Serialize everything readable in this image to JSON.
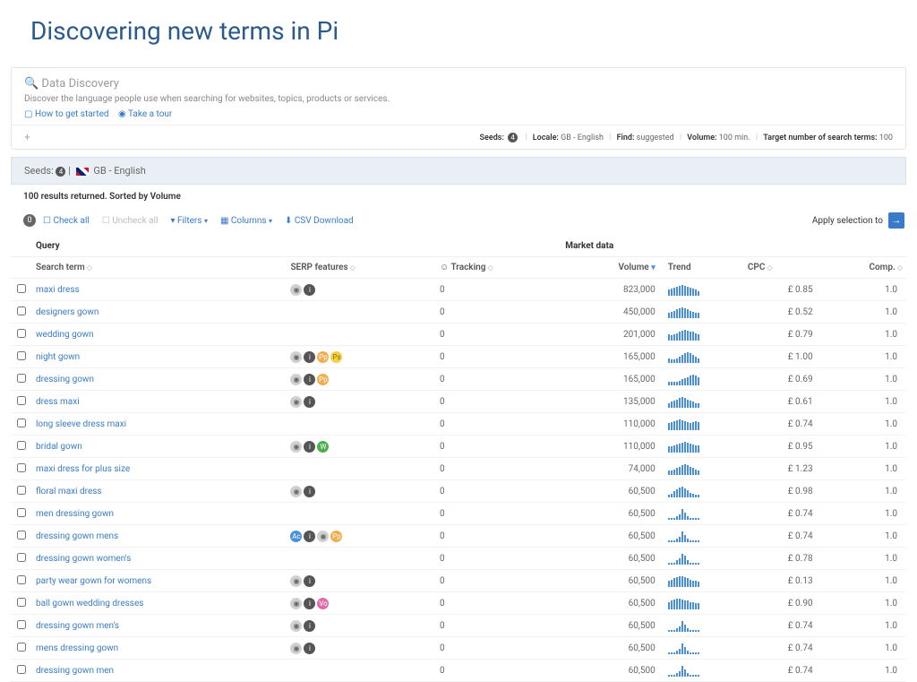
{
  "title": "Discovering new terms in Pi",
  "discovery": {
    "heading": "Data Discovery",
    "sub": "Discover the language people use when searching for websites, topics, products or services.",
    "link_started": "How to get started",
    "link_tour": "Take a tour"
  },
  "seedsBar": {
    "seeds_label": "Seeds:",
    "seeds_count": "4",
    "locale_label": "Locale:",
    "locale": "GB - English",
    "find_label": "Find:",
    "find": "suggested",
    "volume_label": "Volume:",
    "volume": "100 min.",
    "target_label": "Target number of search terms:",
    "target": "100"
  },
  "seedsHeader": {
    "label": "Seeds:",
    "count": "4",
    "locale": "GB - English"
  },
  "resultsInfo": "100 results returned. Sorted by Volume",
  "toolbar": {
    "count": "0",
    "check_all": "Check all",
    "uncheck_all": "Uncheck all",
    "filters": "Filters",
    "columns": "Columns",
    "csv": "CSV Download",
    "apply": "Apply selection to"
  },
  "columns": {
    "group_query": "Query",
    "group_market": "Market data",
    "search_term": "Search term",
    "serp": "SERP features",
    "tracking": "Tracking",
    "volume": "Volume",
    "trend": "Trend",
    "cpc": "CPC",
    "comp": "Comp."
  },
  "rows": [
    {
      "term": "maxi dress",
      "serp": [
        "gray1",
        "dark"
      ],
      "tracking": "0",
      "volume": "823,000",
      "trend": [
        6,
        7,
        8,
        9,
        10,
        11,
        10,
        9,
        8,
        7,
        6,
        5
      ],
      "cpc": "£ 0.85",
      "comp": "1.0"
    },
    {
      "term": "designers gown",
      "serp": [],
      "tracking": "0",
      "volume": "450,000",
      "trend": [
        5,
        6,
        7,
        8,
        9,
        10,
        9,
        8,
        7,
        6,
        5,
        5
      ],
      "cpc": "£ 0.52",
      "comp": "1.0"
    },
    {
      "term": "wedding gown",
      "serp": [],
      "tracking": "0",
      "volume": "201,000",
      "trend": [
        6,
        5,
        6,
        7,
        8,
        9,
        10,
        9,
        8,
        8,
        7,
        6
      ],
      "cpc": "£ 0.79",
      "comp": "1.0"
    },
    {
      "term": "night gown",
      "serp": [
        "gray1",
        "dark",
        "orange",
        "yellow"
      ],
      "tracking": "0",
      "volume": "165,000",
      "trend": [
        5,
        4,
        4,
        5,
        6,
        8,
        10,
        11,
        10,
        8,
        6,
        5
      ],
      "cpc": "£ 1.00",
      "comp": "1.0"
    },
    {
      "term": "dressing gown",
      "serp": [
        "gray1",
        "dark",
        "orange"
      ],
      "tracking": "0",
      "volume": "165,000",
      "trend": [
        4,
        4,
        4,
        4,
        5,
        6,
        7,
        8,
        10,
        11,
        10,
        8
      ],
      "cpc": "£ 0.69",
      "comp": "1.0"
    },
    {
      "term": "dress maxi",
      "serp": [
        "gray1",
        "dark"
      ],
      "tracking": "0",
      "volume": "135,000",
      "trend": [
        4,
        5,
        6,
        7,
        8,
        9,
        8,
        7,
        6,
        5,
        4,
        4
      ],
      "cpc": "£ 0.61",
      "comp": "1.0"
    },
    {
      "term": "long sleeve dress maxi",
      "serp": [],
      "tracking": "0",
      "volume": "110,000",
      "trend": [
        7,
        8,
        9,
        10,
        11,
        10,
        9,
        8,
        7,
        8,
        9,
        8
      ],
      "cpc": "£ 0.74",
      "comp": "1.0"
    },
    {
      "term": "bridal gown",
      "serp": [
        "gray1",
        "dark",
        "green"
      ],
      "tracking": "0",
      "volume": "110,000",
      "trend": [
        6,
        6,
        7,
        8,
        9,
        10,
        11,
        10,
        9,
        8,
        7,
        7
      ],
      "cpc": "£ 0.95",
      "comp": "1.0"
    },
    {
      "term": "maxi dress for plus size",
      "serp": [],
      "tracking": "0",
      "volume": "74,000",
      "trend": [
        3,
        3,
        4,
        5,
        6,
        7,
        8,
        7,
        6,
        5,
        4,
        3
      ],
      "cpc": "£ 1.23",
      "comp": "1.0"
    },
    {
      "term": "floral maxi dress",
      "serp": [
        "gray1",
        "dark"
      ],
      "tracking": "0",
      "volume": "60,500",
      "trend": [
        3,
        4,
        6,
        8,
        10,
        11,
        9,
        7,
        5,
        4,
        3,
        3
      ],
      "cpc": "£ 0.98",
      "comp": "1.0"
    },
    {
      "term": "men dressing gown",
      "serp": [],
      "tracking": "0",
      "volume": "60,500",
      "trend": [
        1,
        1,
        1,
        2,
        3,
        6,
        4,
        2,
        1,
        1,
        1,
        1
      ],
      "cpc": "£ 0.74",
      "comp": "1.0"
    },
    {
      "term": "dressing gown mens",
      "serp": [
        "blue",
        "dark",
        "gray1",
        "orange"
      ],
      "tracking": "0",
      "volume": "60,500",
      "trend": [
        1,
        1,
        1,
        2,
        3,
        6,
        4,
        2,
        1,
        1,
        1,
        1
      ],
      "cpc": "£ 0.74",
      "comp": "1.0"
    },
    {
      "term": "dressing gown women's",
      "serp": [],
      "tracking": "0",
      "volume": "60,500",
      "trend": [
        1,
        1,
        1,
        2,
        3,
        5,
        4,
        2,
        1,
        1,
        1,
        1
      ],
      "cpc": "£ 0.78",
      "comp": "1.0"
    },
    {
      "term": "party wear gown for womens",
      "serp": [
        "gray1",
        "dark"
      ],
      "tracking": "0",
      "volume": "60,500",
      "trend": [
        6,
        7,
        8,
        9,
        10,
        10,
        9,
        8,
        7,
        6,
        6,
        5
      ],
      "cpc": "£ 0.13",
      "comp": "1.0"
    },
    {
      "term": "ball gown wedding dresses",
      "serp": [
        "gray1",
        "dark",
        "pink"
      ],
      "tracking": "0",
      "volume": "60,500",
      "trend": [
        7,
        8,
        9,
        10,
        10,
        9,
        8,
        8,
        7,
        7,
        6,
        6
      ],
      "cpc": "£ 0.90",
      "comp": "1.0"
    },
    {
      "term": "dressing gown men's",
      "serp": [
        "gray1",
        "dark"
      ],
      "tracking": "0",
      "volume": "60,500",
      "trend": [
        1,
        1,
        1,
        2,
        3,
        6,
        4,
        2,
        1,
        1,
        1,
        1
      ],
      "cpc": "£ 0.74",
      "comp": "1.0"
    },
    {
      "term": "mens dressing gown",
      "serp": [
        "gray1",
        "dark"
      ],
      "tracking": "0",
      "volume": "60,500",
      "trend": [
        1,
        1,
        1,
        2,
        3,
        6,
        4,
        2,
        1,
        1,
        1,
        1
      ],
      "cpc": "£ 0.74",
      "comp": "1.0"
    },
    {
      "term": "dressing gown men",
      "serp": [],
      "tracking": "0",
      "volume": "60,500",
      "trend": [
        1,
        1,
        1,
        2,
        3,
        6,
        4,
        2,
        1,
        1,
        1,
        1
      ],
      "cpc": "£ 0.74",
      "comp": "1.0"
    }
  ]
}
